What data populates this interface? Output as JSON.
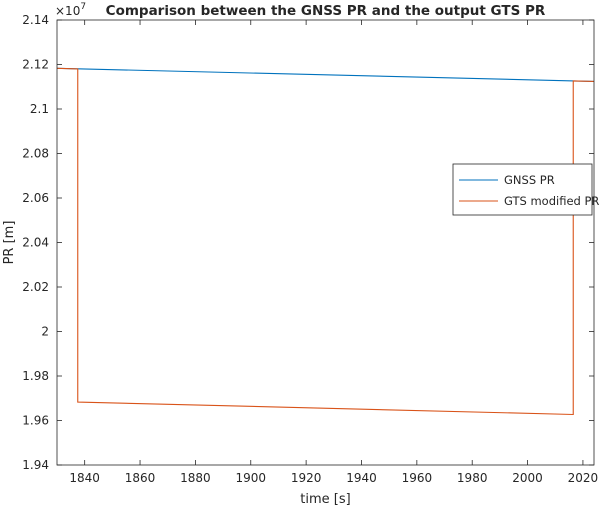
{
  "chart_data": {
    "type": "line",
    "title": "Comparison between the GNSS PR and the output GTS PR",
    "xlabel": "time [s]",
    "ylabel": "PR [m]",
    "exponent_label": "×10",
    "exponent_power": "7",
    "xlim": [
      1830,
      2024
    ],
    "ylim": [
      19400000,
      21400000
    ],
    "xticks": [
      1840,
      1860,
      1880,
      1900,
      1920,
      1940,
      1960,
      1980,
      2000,
      2020
    ],
    "yticks": [
      19400000,
      19600000,
      19800000,
      20000000,
      20200000,
      20400000,
      20600000,
      20800000,
      21000000,
      21200000,
      21400000
    ],
    "xtick_labels": [
      "1840",
      "1860",
      "1880",
      "1900",
      "1920",
      "1940",
      "1960",
      "1980",
      "2000",
      "2020"
    ],
    "ytick_labels": [
      "1.94",
      "1.96",
      "1.98",
      "2",
      "2.02",
      "2.04",
      "2.06",
      "2.08",
      "2.1",
      "2.12",
      "2.14"
    ],
    "grid": false,
    "legend_position": "right",
    "series": [
      {
        "name": "GNSS PR",
        "color": "#0072bd",
        "x": [
          1830,
          2024
        ],
        "y": [
          21183000,
          21124000
        ]
      },
      {
        "name": "GTS modified PR",
        "color": "#d95319",
        "x": [
          1830,
          1837.5,
          1837.5,
          2016.5,
          2016.5,
          2024
        ],
        "y": [
          21183000,
          21180000,
          19683000,
          19627000,
          21126000,
          21124000
        ]
      }
    ]
  }
}
